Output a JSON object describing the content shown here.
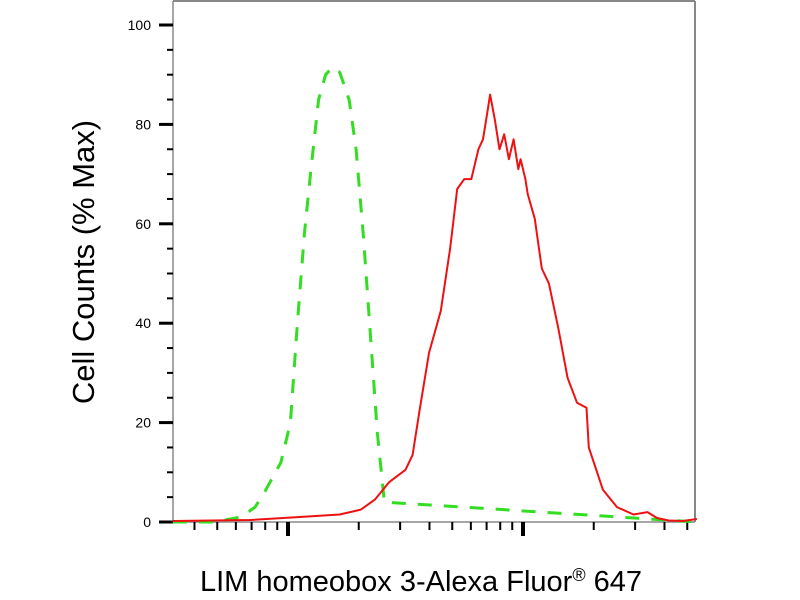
{
  "chart_data": {
    "type": "line",
    "title": "",
    "xlabel": "LIM homeobox 3-Alexa Fluor",
    "xlabel_mark": "®",
    "xlabel_suffix": "647",
    "ylabel": "Cell Counts (% Max)",
    "xscale": "log (decades, no tick labels)",
    "xlim": [
      -0.49,
      1.74
    ],
    "ylim": [
      0,
      100
    ],
    "yticks": [
      0,
      20,
      40,
      60,
      80,
      100
    ],
    "ytick_labels": [
      "0",
      "20",
      "40",
      "60",
      "80",
      "100"
    ],
    "grid": false,
    "series": [
      {
        "style": "dashed",
        "color": "#33dd22",
        "x": [
          -0.49,
          -0.31,
          -0.2,
          -0.14,
          -0.1,
          -0.03,
          0.01,
          0.04,
          0.07,
          0.1,
          0.13,
          0.16,
          0.19,
          0.22,
          0.26,
          0.29,
          0.32,
          0.35,
          0.38,
          0.41,
          1.74
        ],
        "y": [
          0,
          0,
          1,
          3,
          6,
          12,
          20,
          40,
          58,
          72,
          85,
          90,
          91.5,
          90.5,
          85,
          75,
          58,
          38,
          18,
          4,
          0
        ]
      },
      {
        "style": "solid",
        "color": "#ee1111",
        "x": [
          -0.49,
          -0.16,
          0.05,
          0.22,
          0.31,
          0.37,
          0.43,
          0.5,
          0.53,
          0.56,
          0.6,
          0.65,
          0.69,
          0.72,
          0.75,
          0.78,
          0.81,
          0.83,
          0.85,
          0.86,
          0.88,
          0.9,
          0.92,
          0.94,
          0.96,
          0.98,
          0.99,
          1.01,
          1.02,
          1.05,
          1.08,
          1.11,
          1.15,
          1.19,
          1.23,
          1.27,
          1.28,
          1.34,
          1.4,
          1.47,
          1.53,
          1.57,
          1.62,
          1.68,
          1.74
        ],
        "y": [
          0.2,
          0.4,
          1,
          1.5,
          2.5,
          4.5,
          8,
          10.5,
          13.5,
          22.5,
          34,
          42.5,
          55,
          67,
          69,
          69,
          75,
          77,
          83,
          86,
          81,
          75,
          78,
          73,
          77,
          71,
          73,
          69,
          66,
          61,
          51,
          48,
          39,
          29,
          24,
          23,
          15,
          6.5,
          3,
          1.5,
          2,
          0.8,
          0.3,
          0.2,
          0.6
        ]
      }
    ]
  }
}
